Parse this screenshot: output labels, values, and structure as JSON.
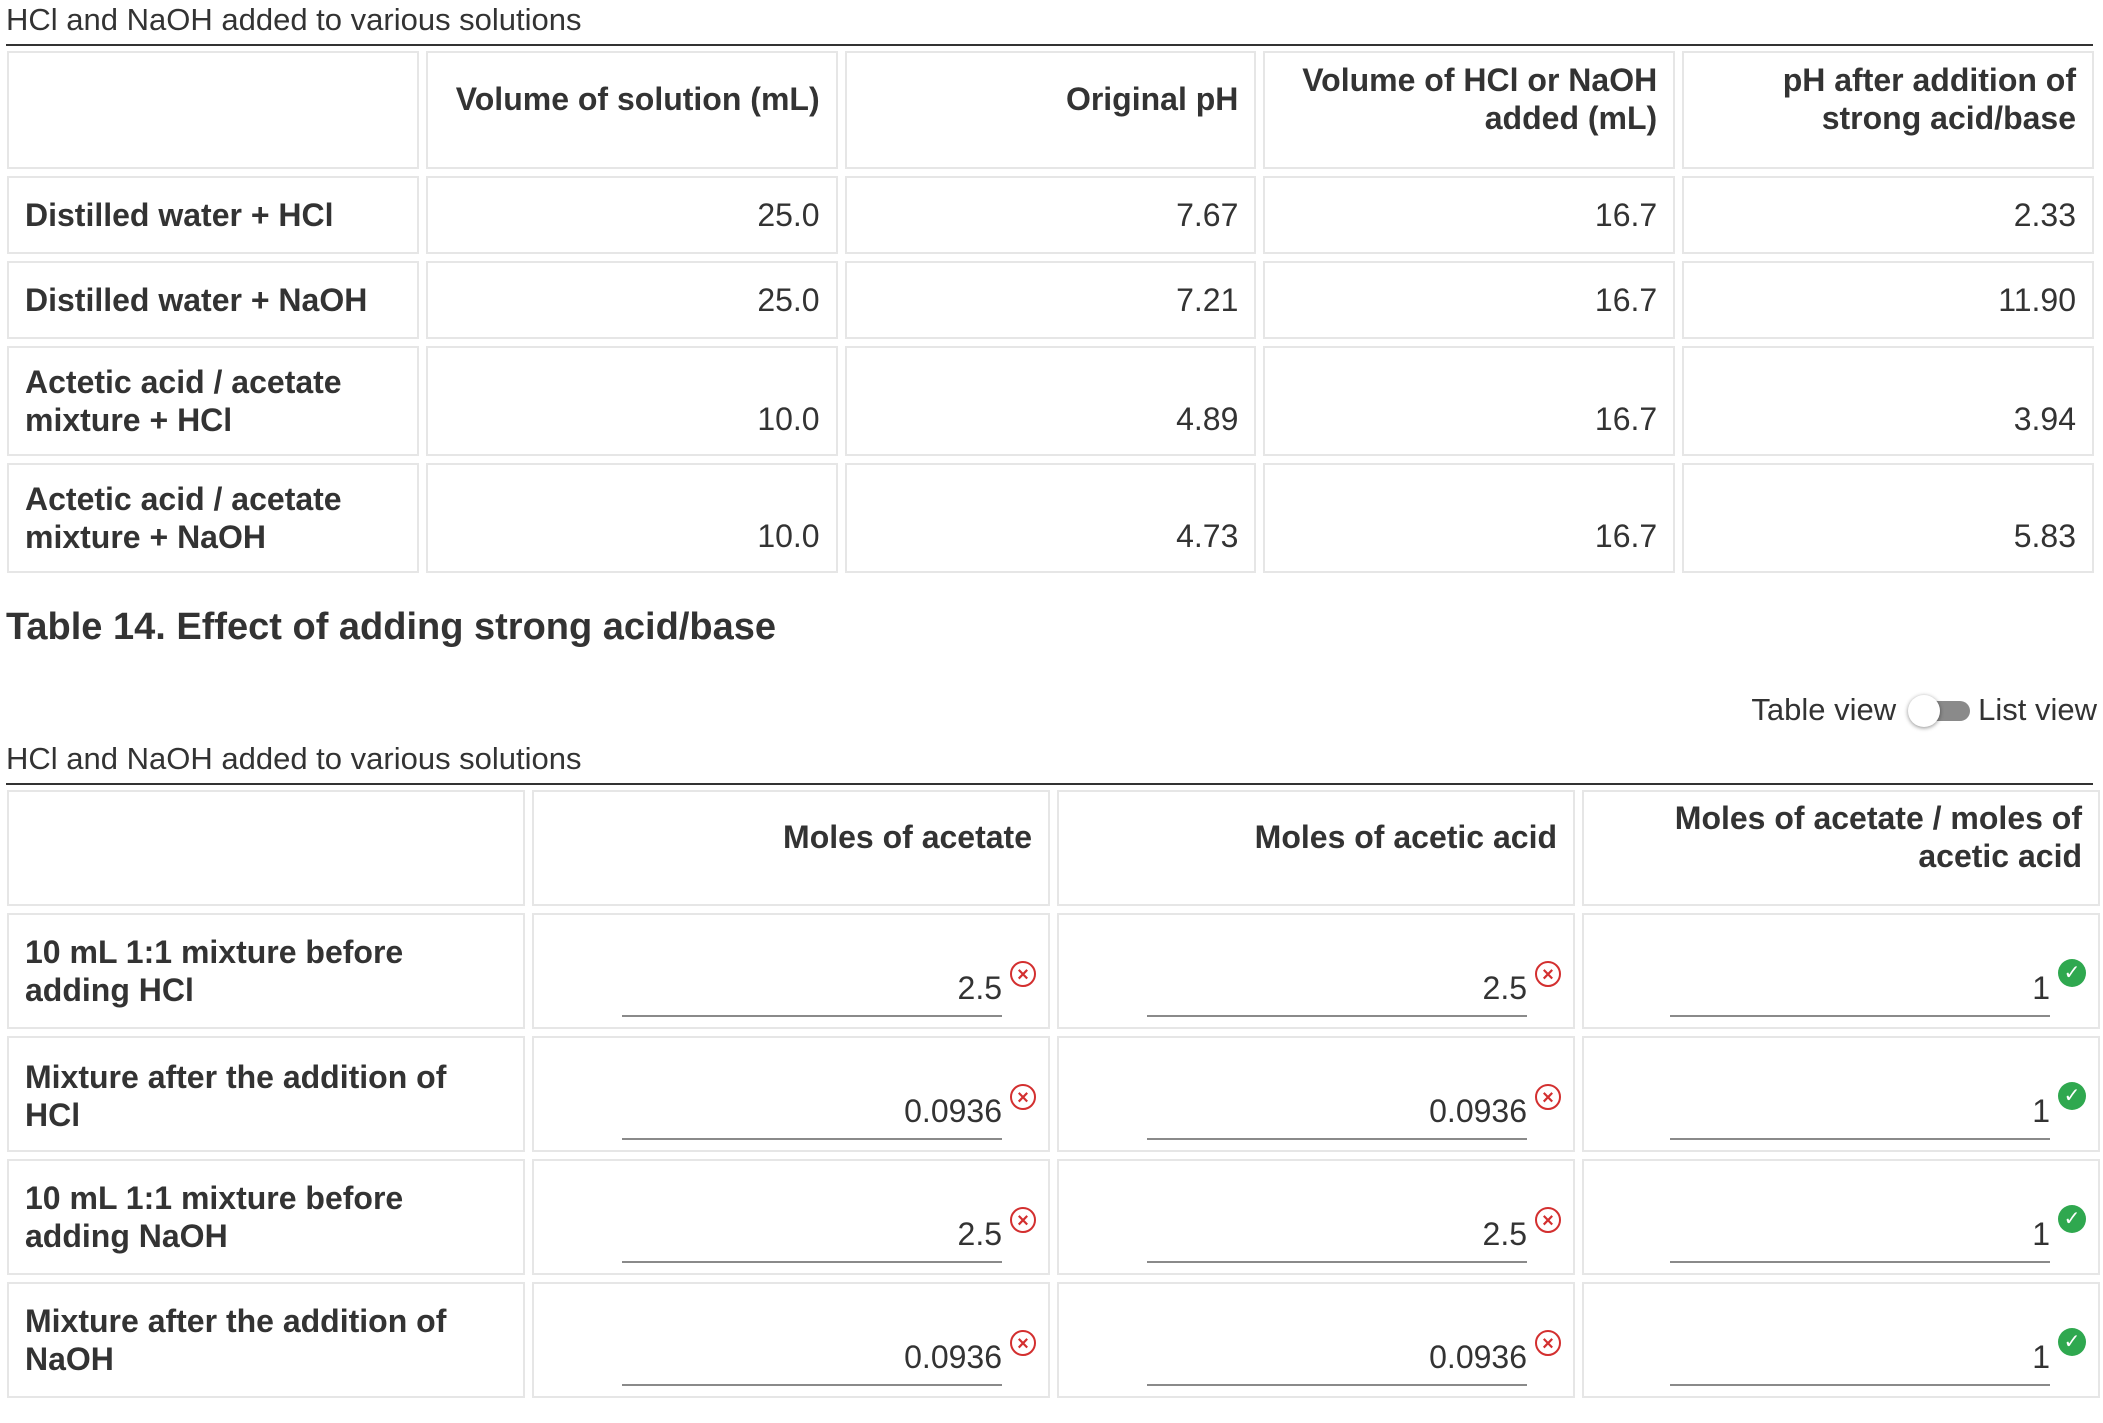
{
  "table13": {
    "caption": "HCl and NaOH added to various solutions",
    "headers": [
      "",
      "Volume of solution (mL)",
      "Original pH",
      "Volume of HCl or NaOH added (mL)",
      "pH after addition of strong acid/base"
    ],
    "rows": [
      {
        "label": "Distilled water + HCl",
        "cells": [
          "25.0",
          "7.67",
          "16.7",
          "2.33"
        ]
      },
      {
        "label": "Distilled water + NaOH",
        "cells": [
          "25.0",
          "7.21",
          "16.7",
          "11.90"
        ]
      },
      {
        "label": "Actetic acid / acetate mixture + HCl",
        "cells": [
          "10.0",
          "4.89",
          "16.7",
          "3.94"
        ]
      },
      {
        "label": "Actetic acid / acetate mixture + NaOH",
        "cells": [
          "10.0",
          "4.73",
          "16.7",
          "5.83"
        ]
      }
    ]
  },
  "table14": {
    "title": "Table 14. Effect of adding strong acid/base",
    "toggle": {
      "left_label": "Table view",
      "right_label": "List view",
      "state": "table"
    },
    "caption": "HCl and NaOH added to various solutions",
    "headers": [
      "",
      "Moles of acetate",
      "Moles of acetic acid",
      "Moles of acetate / moles of acetic acid"
    ],
    "rows": [
      {
        "label": "10 mL 1:1 mixture before adding HCl",
        "inputs": [
          {
            "value": "2.5",
            "status": "incorrect"
          },
          {
            "value": "2.5",
            "status": "incorrect"
          },
          {
            "value": "1",
            "status": "correct"
          }
        ]
      },
      {
        "label": "Mixture after the addition of HCl",
        "inputs": [
          {
            "value": "0.0936",
            "status": "incorrect"
          },
          {
            "value": "0.0936",
            "status": "incorrect"
          },
          {
            "value": "1",
            "status": "correct"
          }
        ]
      },
      {
        "label": "10 mL 1:1 mixture before adding NaOH",
        "inputs": [
          {
            "value": "2.5",
            "status": "incorrect"
          },
          {
            "value": "2.5",
            "status": "incorrect"
          },
          {
            "value": "1",
            "status": "correct"
          }
        ]
      },
      {
        "label": "Mixture after the addition of NaOH",
        "inputs": [
          {
            "value": "0.0936",
            "status": "incorrect"
          },
          {
            "value": "0.0936",
            "status": "incorrect"
          },
          {
            "value": "1",
            "status": "correct"
          }
        ]
      }
    ]
  },
  "colors": {
    "incorrect": "#d32f2f",
    "correct": "#2fa84f",
    "border": "#e6e6e6"
  },
  "icons": {
    "incorrect": "x-circle-icon",
    "correct": "check-circle-icon"
  }
}
